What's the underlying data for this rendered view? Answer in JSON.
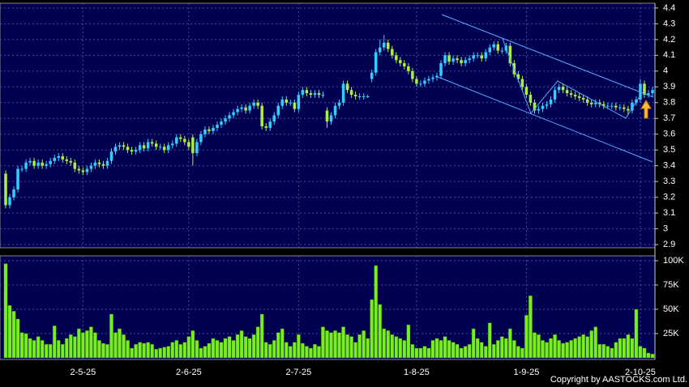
{
  "chart_data": {
    "type": "candlestick",
    "up_color": "#33ccff",
    "down_color": "#aaee44",
    "grid": true,
    "ylim": [
      2.88,
      4.42
    ],
    "yticks": [
      2.9,
      3,
      3.1,
      3.2,
      3.3,
      3.4,
      3.5,
      3.6,
      3.7,
      3.8,
      3.9,
      4,
      4.1,
      4.2,
      4.3,
      4.4
    ],
    "categories": [
      null,
      null,
      null,
      null,
      null,
      null,
      null,
      null,
      null,
      null,
      null,
      null,
      null,
      null,
      null,
      null,
      null,
      null,
      null,
      "2-5-25",
      null,
      null,
      null,
      null,
      null,
      null,
      null,
      null,
      null,
      null,
      null,
      null,
      null,
      null,
      null,
      null,
      null,
      null,
      null,
      null,
      null,
      null,
      null,
      null,
      null,
      "2-6-25",
      null,
      null,
      null,
      null,
      null,
      null,
      null,
      null,
      null,
      null,
      null,
      null,
      null,
      null,
      null,
      null,
      null,
      null,
      null,
      null,
      null,
      null,
      null,
      null,
      null,
      null,
      "2-7-25",
      null,
      null,
      null,
      null,
      null,
      null,
      null,
      null,
      null,
      null,
      null,
      null,
      null,
      null,
      null,
      null,
      null,
      null,
      null,
      null,
      null,
      null,
      null,
      null,
      null,
      null,
      null,
      null,
      "1-8-25",
      null,
      null,
      null,
      null,
      null,
      null,
      null,
      null,
      null,
      null,
      null,
      null,
      null,
      null,
      null,
      null,
      null,
      null,
      null,
      null,
      null,
      null,
      null,
      null,
      null,
      null,
      "1-9-25",
      null,
      null,
      null,
      null,
      null,
      null,
      null,
      null,
      null,
      null,
      null,
      null,
      null,
      null,
      null,
      null,
      null,
      null,
      null,
      null,
      null,
      null,
      null,
      null,
      null,
      null,
      null,
      "2-10-25",
      null,
      null,
      null
    ],
    "ohlc": [
      [
        3.35,
        3.37,
        3.13,
        3.15
      ],
      [
        3.15,
        3.22,
        3.13,
        3.2
      ],
      [
        3.2,
        3.27,
        3.18,
        3.25
      ],
      [
        3.25,
        3.4,
        3.23,
        3.38
      ],
      [
        3.38,
        3.4,
        3.36,
        3.38
      ],
      [
        3.38,
        3.44,
        3.36,
        3.42
      ],
      [
        3.42,
        3.45,
        3.4,
        3.43
      ],
      [
        3.43,
        3.45,
        3.38,
        3.4
      ],
      [
        3.4,
        3.44,
        3.38,
        3.42
      ],
      [
        3.42,
        3.44,
        3.38,
        3.4
      ],
      [
        3.4,
        3.43,
        3.38,
        3.41
      ],
      [
        3.41,
        3.45,
        3.39,
        3.43
      ],
      [
        3.43,
        3.47,
        3.41,
        3.45
      ],
      [
        3.45,
        3.48,
        3.43,
        3.46
      ],
      [
        3.46,
        3.48,
        3.42,
        3.44
      ],
      [
        3.44,
        3.46,
        3.41,
        3.43
      ],
      [
        3.43,
        3.45,
        3.4,
        3.42
      ],
      [
        3.42,
        3.44,
        3.36,
        3.38
      ],
      [
        3.38,
        3.4,
        3.35,
        3.37
      ],
      [
        3.37,
        3.39,
        3.34,
        3.36
      ],
      [
        3.36,
        3.4,
        3.34,
        3.38
      ],
      [
        3.38,
        3.42,
        3.36,
        3.4
      ],
      [
        3.4,
        3.44,
        3.38,
        3.42
      ],
      [
        3.42,
        3.44,
        3.39,
        3.41
      ],
      [
        3.41,
        3.43,
        3.38,
        3.4
      ],
      [
        3.4,
        3.45,
        3.38,
        3.43
      ],
      [
        3.43,
        3.51,
        3.41,
        3.49
      ],
      [
        3.49,
        3.54,
        3.47,
        3.52
      ],
      [
        3.52,
        3.55,
        3.5,
        3.53
      ],
      [
        3.53,
        3.55,
        3.5,
        3.52
      ],
      [
        3.52,
        3.54,
        3.48,
        3.5
      ],
      [
        3.5,
        3.52,
        3.47,
        3.49
      ],
      [
        3.49,
        3.52,
        3.47,
        3.5
      ],
      [
        3.5,
        3.55,
        3.48,
        3.53
      ],
      [
        3.53,
        3.55,
        3.49,
        3.51
      ],
      [
        3.51,
        3.57,
        3.49,
        3.55
      ],
      [
        3.55,
        3.57,
        3.52,
        3.54
      ],
      [
        3.54,
        3.56,
        3.5,
        3.52
      ],
      [
        3.52,
        3.54,
        3.5,
        3.52
      ],
      [
        3.52,
        3.54,
        3.48,
        3.5
      ],
      [
        3.5,
        3.55,
        3.48,
        3.53
      ],
      [
        3.53,
        3.56,
        3.51,
        3.54
      ],
      [
        3.54,
        3.6,
        3.52,
        3.58
      ],
      [
        3.58,
        3.6,
        3.55,
        3.57
      ],
      [
        3.57,
        3.59,
        3.53,
        3.55
      ],
      [
        3.55,
        3.57,
        3.5,
        3.52
      ],
      [
        3.58,
        3.6,
        3.4,
        3.48
      ],
      [
        3.48,
        3.57,
        3.46,
        3.55
      ],
      [
        3.55,
        3.62,
        3.53,
        3.6
      ],
      [
        3.6,
        3.65,
        3.58,
        3.63
      ],
      [
        3.63,
        3.65,
        3.6,
        3.62
      ],
      [
        3.62,
        3.66,
        3.6,
        3.64
      ],
      [
        3.64,
        3.68,
        3.62,
        3.66
      ],
      [
        3.66,
        3.7,
        3.64,
        3.68
      ],
      [
        3.68,
        3.72,
        3.66,
        3.7
      ],
      [
        3.7,
        3.74,
        3.68,
        3.72
      ],
      [
        3.72,
        3.76,
        3.7,
        3.74
      ],
      [
        3.74,
        3.78,
        3.72,
        3.76
      ],
      [
        3.76,
        3.79,
        3.74,
        3.77
      ],
      [
        3.77,
        3.79,
        3.73,
        3.75
      ],
      [
        3.75,
        3.8,
        3.73,
        3.78
      ],
      [
        3.78,
        3.82,
        3.76,
        3.8
      ],
      [
        3.8,
        3.82,
        3.76,
        3.78
      ],
      [
        3.78,
        3.8,
        3.63,
        3.65
      ],
      [
        3.65,
        3.67,
        3.62,
        3.64
      ],
      [
        3.64,
        3.7,
        3.62,
        3.68
      ],
      [
        3.68,
        3.74,
        3.66,
        3.72
      ],
      [
        3.72,
        3.8,
        3.7,
        3.78
      ],
      [
        3.78,
        3.84,
        3.76,
        3.82
      ],
      [
        3.82,
        3.84,
        3.78,
        3.8
      ],
      [
        3.8,
        3.82,
        3.78,
        3.8
      ],
      [
        3.8,
        3.82,
        3.74,
        3.76
      ],
      [
        3.76,
        3.87,
        3.74,
        3.85
      ],
      [
        3.85,
        3.9,
        3.83,
        3.88
      ],
      [
        3.88,
        3.9,
        3.84,
        3.86
      ],
      [
        3.86,
        3.88,
        3.83,
        3.85
      ],
      [
        3.85,
        3.88,
        3.83,
        3.86
      ],
      [
        3.86,
        3.88,
        3.83,
        3.85
      ],
      [
        3.85,
        3.87,
        3.83,
        3.85
      ],
      [
        3.75,
        3.77,
        3.64,
        3.68
      ],
      [
        3.68,
        3.74,
        3.66,
        3.72
      ],
      [
        3.72,
        3.8,
        3.7,
        3.78
      ],
      [
        3.78,
        3.82,
        3.76,
        3.8
      ],
      [
        3.8,
        3.94,
        3.78,
        3.92
      ],
      [
        3.92,
        3.94,
        3.86,
        3.88
      ],
      [
        3.88,
        3.9,
        3.83,
        3.85
      ],
      [
        3.85,
        3.87,
        3.82,
        3.84
      ],
      [
        3.84,
        3.86,
        3.82,
        3.84
      ],
      [
        3.84,
        3.86,
        3.82,
        3.84
      ],
      [
        3.84,
        3.85,
        3.83,
        3.84
      ],
      [
        3.95,
        4.01,
        3.93,
        3.99
      ],
      [
        3.99,
        4.14,
        3.97,
        4.12
      ],
      [
        4.12,
        4.2,
        4.1,
        4.15
      ],
      [
        4.15,
        4.23,
        4.13,
        4.18
      ],
      [
        4.18,
        4.2,
        4.12,
        4.14
      ],
      [
        4.14,
        4.16,
        4.08,
        4.1
      ],
      [
        4.1,
        4.12,
        4.05,
        4.07
      ],
      [
        4.07,
        4.09,
        4.03,
        4.05
      ],
      [
        4.05,
        4.07,
        4.01,
        4.03
      ],
      [
        4.03,
        4.05,
        3.98,
        4
      ],
      [
        4,
        4.02,
        3.93,
        3.95
      ],
      [
        3.95,
        3.97,
        3.9,
        3.92
      ],
      [
        3.92,
        3.94,
        3.9,
        3.92
      ],
      [
        3.92,
        3.96,
        3.9,
        3.94
      ],
      [
        3.94,
        3.97,
        3.92,
        3.95
      ],
      [
        3.95,
        3.98,
        3.93,
        3.96
      ],
      [
        3.96,
        3.99,
        3.94,
        3.97
      ],
      [
        3.97,
        4.07,
        3.95,
        4.05
      ],
      [
        4.05,
        4.12,
        4.03,
        4.1
      ],
      [
        4.1,
        4.12,
        4.04,
        4.06
      ],
      [
        4.06,
        4.1,
        4.04,
        4.08
      ],
      [
        4.08,
        4.1,
        4.05,
        4.07
      ],
      [
        4.07,
        4.09,
        4.03,
        4.05
      ],
      [
        4.05,
        4.09,
        4.03,
        4.07
      ],
      [
        4.07,
        4.1,
        4.05,
        4.08
      ],
      [
        4.08,
        4.12,
        4.06,
        4.1
      ],
      [
        4.1,
        4.12,
        4.08,
        4.1
      ],
      [
        4.1,
        4.12,
        4.06,
        4.08
      ],
      [
        4.08,
        4.14,
        4.06,
        4.12
      ],
      [
        4.12,
        4.17,
        4.1,
        4.15
      ],
      [
        4.15,
        4.19,
        4.13,
        4.17
      ],
      [
        4.17,
        4.19,
        4.11,
        4.13
      ],
      [
        4.13,
        4.15,
        4.11,
        4.13
      ],
      [
        4.13,
        4.18,
        4.11,
        4.16
      ],
      [
        4.16,
        4.18,
        4.03,
        4.05
      ],
      [
        4.05,
        4.07,
        3.96,
        3.98
      ],
      [
        3.98,
        4,
        3.93,
        3.95
      ],
      [
        3.95,
        3.97,
        3.88,
        3.9
      ],
      [
        3.9,
        3.92,
        3.83,
        3.85
      ],
      [
        3.85,
        3.87,
        3.78,
        3.8
      ],
      [
        3.8,
        3.82,
        3.73,
        3.75
      ],
      [
        3.75,
        3.78,
        3.73,
        3.76
      ],
      [
        3.76,
        3.8,
        3.74,
        3.78
      ],
      [
        3.78,
        3.81,
        3.76,
        3.79
      ],
      [
        3.79,
        3.84,
        3.77,
        3.82
      ],
      [
        3.82,
        3.9,
        3.8,
        3.88
      ],
      [
        3.88,
        3.92,
        3.86,
        3.9
      ],
      [
        3.9,
        3.92,
        3.86,
        3.88
      ],
      [
        3.88,
        3.9,
        3.84,
        3.86
      ],
      [
        3.86,
        3.88,
        3.83,
        3.85
      ],
      [
        3.85,
        3.87,
        3.82,
        3.84
      ],
      [
        3.84,
        3.86,
        3.81,
        3.83
      ],
      [
        3.83,
        3.85,
        3.8,
        3.82
      ],
      [
        3.82,
        3.84,
        3.78,
        3.8
      ],
      [
        3.8,
        3.82,
        3.77,
        3.79
      ],
      [
        3.79,
        3.82,
        3.77,
        3.8
      ],
      [
        3.8,
        3.82,
        3.77,
        3.79
      ],
      [
        3.79,
        3.81,
        3.76,
        3.78
      ],
      [
        3.78,
        3.8,
        3.76,
        3.78
      ],
      [
        3.78,
        3.8,
        3.76,
        3.78
      ],
      [
        3.78,
        3.8,
        3.75,
        3.77
      ],
      [
        3.77,
        3.79,
        3.75,
        3.77
      ],
      [
        3.77,
        3.79,
        3.74,
        3.76
      ],
      [
        3.76,
        3.78,
        3.72,
        3.75
      ],
      [
        3.75,
        3.82,
        3.73,
        3.8
      ],
      [
        3.8,
        3.84,
        3.78,
        3.82
      ],
      [
        3.82,
        3.95,
        3.8,
        3.92
      ],
      [
        3.92,
        3.94,
        3.83,
        3.85
      ],
      [
        3.85,
        3.88,
        3.83,
        3.86
      ],
      [
        3.86,
        3.9,
        3.84,
        3.88
      ]
    ],
    "volume": {
      "color": "#77ee22",
      "ylim": [
        0,
        100000
      ],
      "yticks": [
        {
          "value": 100000,
          "label": "100K"
        },
        {
          "value": 75000,
          "label": "75K"
        },
        {
          "value": 50000,
          "label": "50K"
        },
        {
          "value": 25000,
          "label": "25K"
        }
      ],
      "values": [
        97000,
        54000,
        48000,
        40000,
        26000,
        25000,
        20000,
        18000,
        22000,
        18000,
        14000,
        14000,
        33000,
        18000,
        14000,
        20000,
        24000,
        22000,
        30000,
        26000,
        28000,
        32000,
        26000,
        18000,
        15000,
        14000,
        45000,
        26000,
        30000,
        24000,
        18000,
        10000,
        14000,
        16000,
        15000,
        16000,
        14000,
        9000,
        10000,
        11000,
        12000,
        16000,
        18000,
        14000,
        16000,
        22000,
        28000,
        18000,
        10000,
        12000,
        15000,
        20000,
        18000,
        16000,
        20000,
        22000,
        18000,
        24000,
        28000,
        22000,
        20000,
        24000,
        32000,
        45000,
        16000,
        14000,
        18000,
        26000,
        30000,
        16000,
        12000,
        16000,
        24000,
        15000,
        12000,
        10000,
        14000,
        12000,
        32000,
        28000,
        26000,
        28000,
        26000,
        32000,
        24000,
        22000,
        16000,
        24000,
        28000,
        20000,
        60000,
        95000,
        55000,
        30000,
        28000,
        24000,
        22000,
        20000,
        18000,
        34000,
        14000,
        10000,
        10000,
        12000,
        10000,
        18000,
        20000,
        18000,
        22000,
        18000,
        16000,
        14000,
        10000,
        12000,
        14000,
        30000,
        20000,
        16000,
        12000,
        36000,
        14000,
        18000,
        22000,
        20000,
        30000,
        18000,
        12000,
        10000,
        44000,
        64000,
        26000,
        24000,
        18000,
        16000,
        20000,
        24000,
        18000,
        15000,
        16000,
        18000,
        20000,
        22000,
        24000,
        22000,
        28000,
        32000,
        14000,
        14000,
        12000,
        10000,
        16000,
        20000,
        20000,
        24000,
        20000,
        50000,
        12000,
        10000,
        5000,
        4000
      ]
    },
    "copyright": "Copyright by AASTOCKS.com Ltd."
  }
}
